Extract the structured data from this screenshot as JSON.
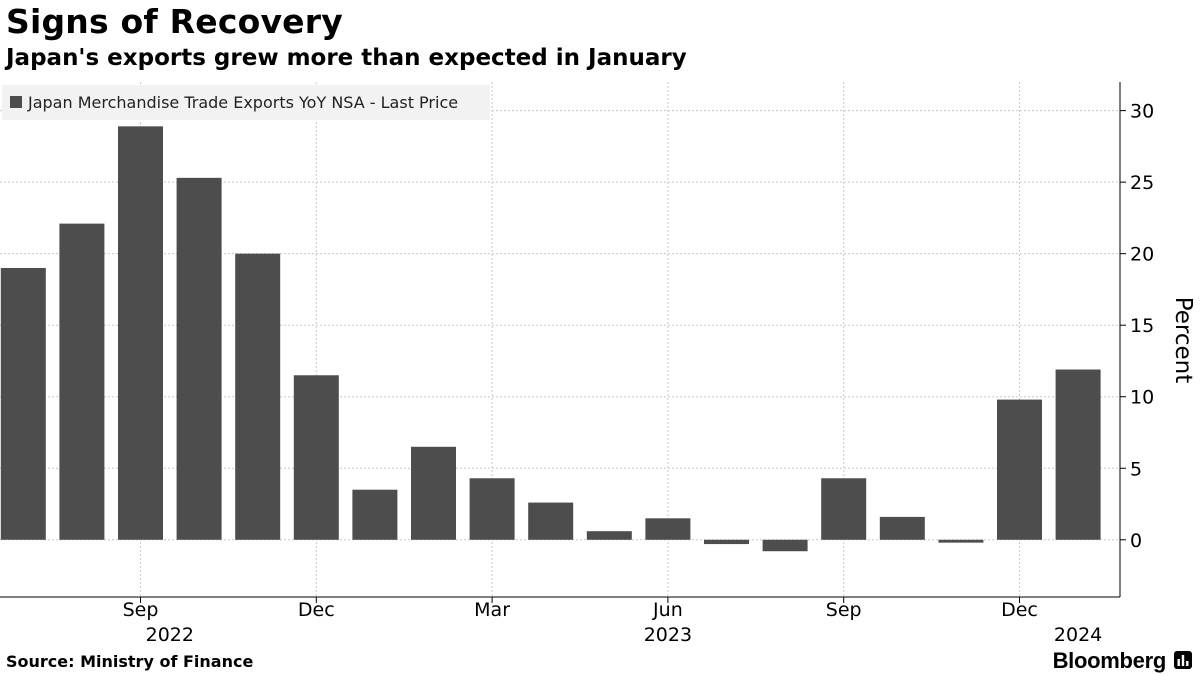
{
  "header": {
    "title": "Signs of Recovery",
    "subtitle": "Japan's exports grew more than expected in January"
  },
  "footer": {
    "source": "Source: Ministry of Finance",
    "brand": "Bloomberg",
    "brand_icon": "bloomberg-chart-icon"
  },
  "colors": {
    "bar": "#4d4d4d",
    "grid": "#c8c8c8",
    "legend_bg": "#f2f2f2"
  },
  "chart_data": {
    "type": "bar",
    "legend_position": "top-left",
    "grid": true,
    "ylabel": "Percent",
    "y_axis_side": "right",
    "ylim": [
      -4,
      32
    ],
    "yticks": [
      0,
      5,
      10,
      15,
      20,
      25,
      30
    ],
    "series": [
      {
        "name": "Japan Merchandise Trade Exports YoY NSA - Last Price",
        "categories": [
          "2022-07",
          "2022-08",
          "2022-09",
          "2022-10",
          "2022-11",
          "2022-12",
          "2023-01",
          "2023-02",
          "2023-03",
          "2023-04",
          "2023-05",
          "2023-06",
          "2023-07",
          "2023-08",
          "2023-09",
          "2023-10",
          "2023-11",
          "2023-12",
          "2024-01"
        ],
        "values": [
          19.0,
          22.1,
          28.9,
          25.3,
          20.0,
          11.5,
          3.5,
          6.5,
          4.3,
          2.6,
          0.6,
          1.5,
          -0.3,
          -0.8,
          4.3,
          1.6,
          -0.2,
          9.8,
          11.9
        ]
      }
    ],
    "x_ticks": [
      {
        "label": "Sep",
        "index": 2
      },
      {
        "label": "Dec",
        "index": 5
      },
      {
        "label": "Mar",
        "index": 8
      },
      {
        "label": "Jun",
        "index": 11
      },
      {
        "label": "Sep",
        "index": 14
      },
      {
        "label": "Dec",
        "index": 17
      }
    ],
    "year_labels": [
      {
        "label": "2022",
        "index": 2.5
      },
      {
        "label": "2023",
        "index": 11
      },
      {
        "label": "2024",
        "index": 18
      }
    ]
  }
}
